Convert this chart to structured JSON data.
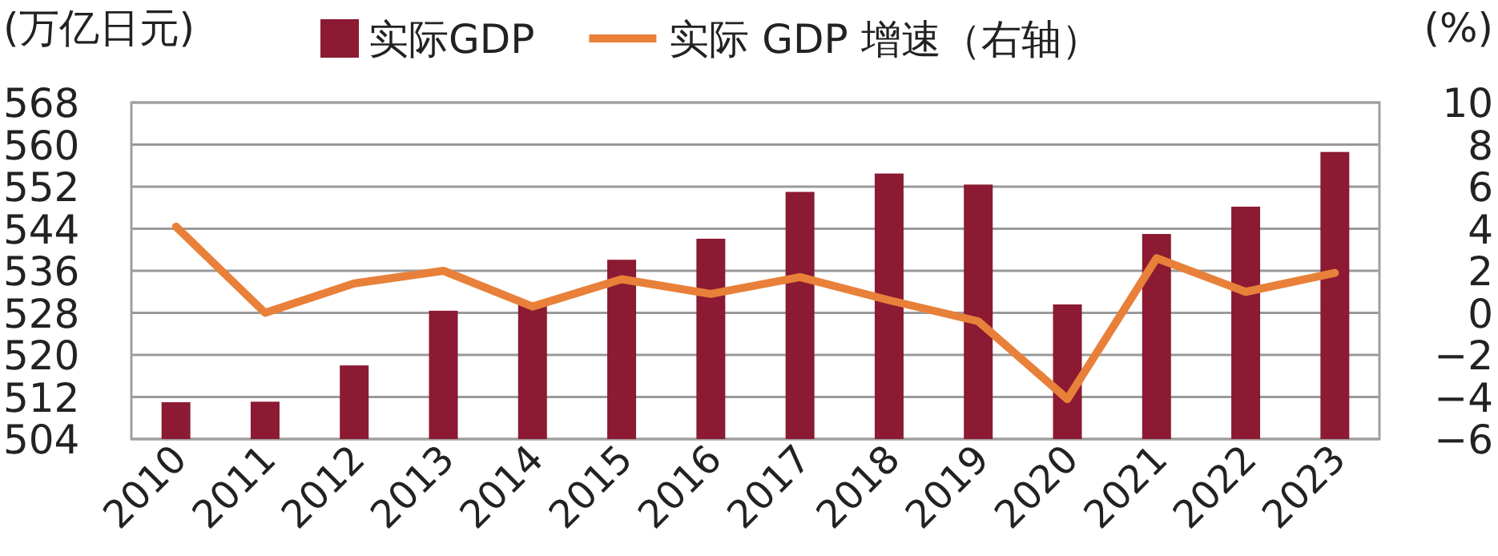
{
  "chart_data": {
    "type": "bar",
    "ylabel": "(万亿日元)",
    "y2label": "(%)",
    "categories": [
      "2010",
      "2011",
      "2012",
      "2013",
      "2014",
      "2015",
      "2016",
      "2017",
      "2018",
      "2019",
      "2020",
      "2021",
      "2022",
      "2023"
    ],
    "series": [
      {
        "name": "实际GDP",
        "color": "#8b1a32",
        "values": [
          511.0,
          511.1,
          518.0,
          528.4,
          529.6,
          538.1,
          542.1,
          551.0,
          554.5,
          552.4,
          529.6,
          543.0,
          548.2,
          558.6
        ]
      },
      {
        "name": "实际 GDP 增速（右轴）",
        "type": "line",
        "axis": "y2",
        "color": "#e8803a",
        "values": [
          4.1,
          0.0,
          1.4,
          2.0,
          0.3,
          1.6,
          0.9,
          1.7,
          0.6,
          -0.4,
          -4.1,
          2.6,
          1.0,
          1.9
        ]
      }
    ],
    "ylim": [
      504,
      568
    ],
    "yticks": [
      504,
      512,
      520,
      528,
      536,
      544,
      552,
      560,
      568
    ],
    "y2lim": [
      -6,
      10
    ],
    "y2ticks": [
      -6,
      -4,
      -2,
      0,
      2,
      4,
      6,
      8,
      10
    ],
    "grid": "y",
    "legend": "top",
    "marker": "none",
    "line_style": "solid"
  }
}
